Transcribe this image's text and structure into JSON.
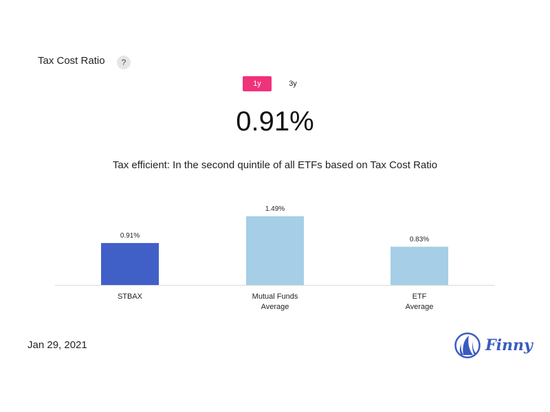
{
  "header": {
    "title": "Tax Cost Ratio",
    "help_label": "?"
  },
  "tabs": [
    {
      "label": "1y",
      "active": true
    },
    {
      "label": "3y",
      "active": false
    }
  ],
  "value": "0.91%",
  "subtitle": "Tax efficient: In the second quintile of all ETFs based on Tax Cost Ratio",
  "date": "Jan 29, 2021",
  "brand": {
    "name": "Finny",
    "color": "#3a5bbf"
  },
  "colors": {
    "accent": "#f0327a",
    "primary_bar": "#4060c8",
    "secondary_bar": "#a6cee6"
  },
  "chart_data": {
    "type": "bar",
    "categories": [
      [
        "STBAX"
      ],
      [
        "Mutual Funds",
        "Average"
      ],
      [
        "ETF",
        "Average"
      ]
    ],
    "values": [
      0.91,
      1.49,
      0.83
    ],
    "value_labels": [
      "0.91%",
      "1.49%",
      "0.83%"
    ],
    "highlight_index": 0,
    "ylim": [
      0,
      1.49
    ],
    "grid": false,
    "legend": "none"
  }
}
